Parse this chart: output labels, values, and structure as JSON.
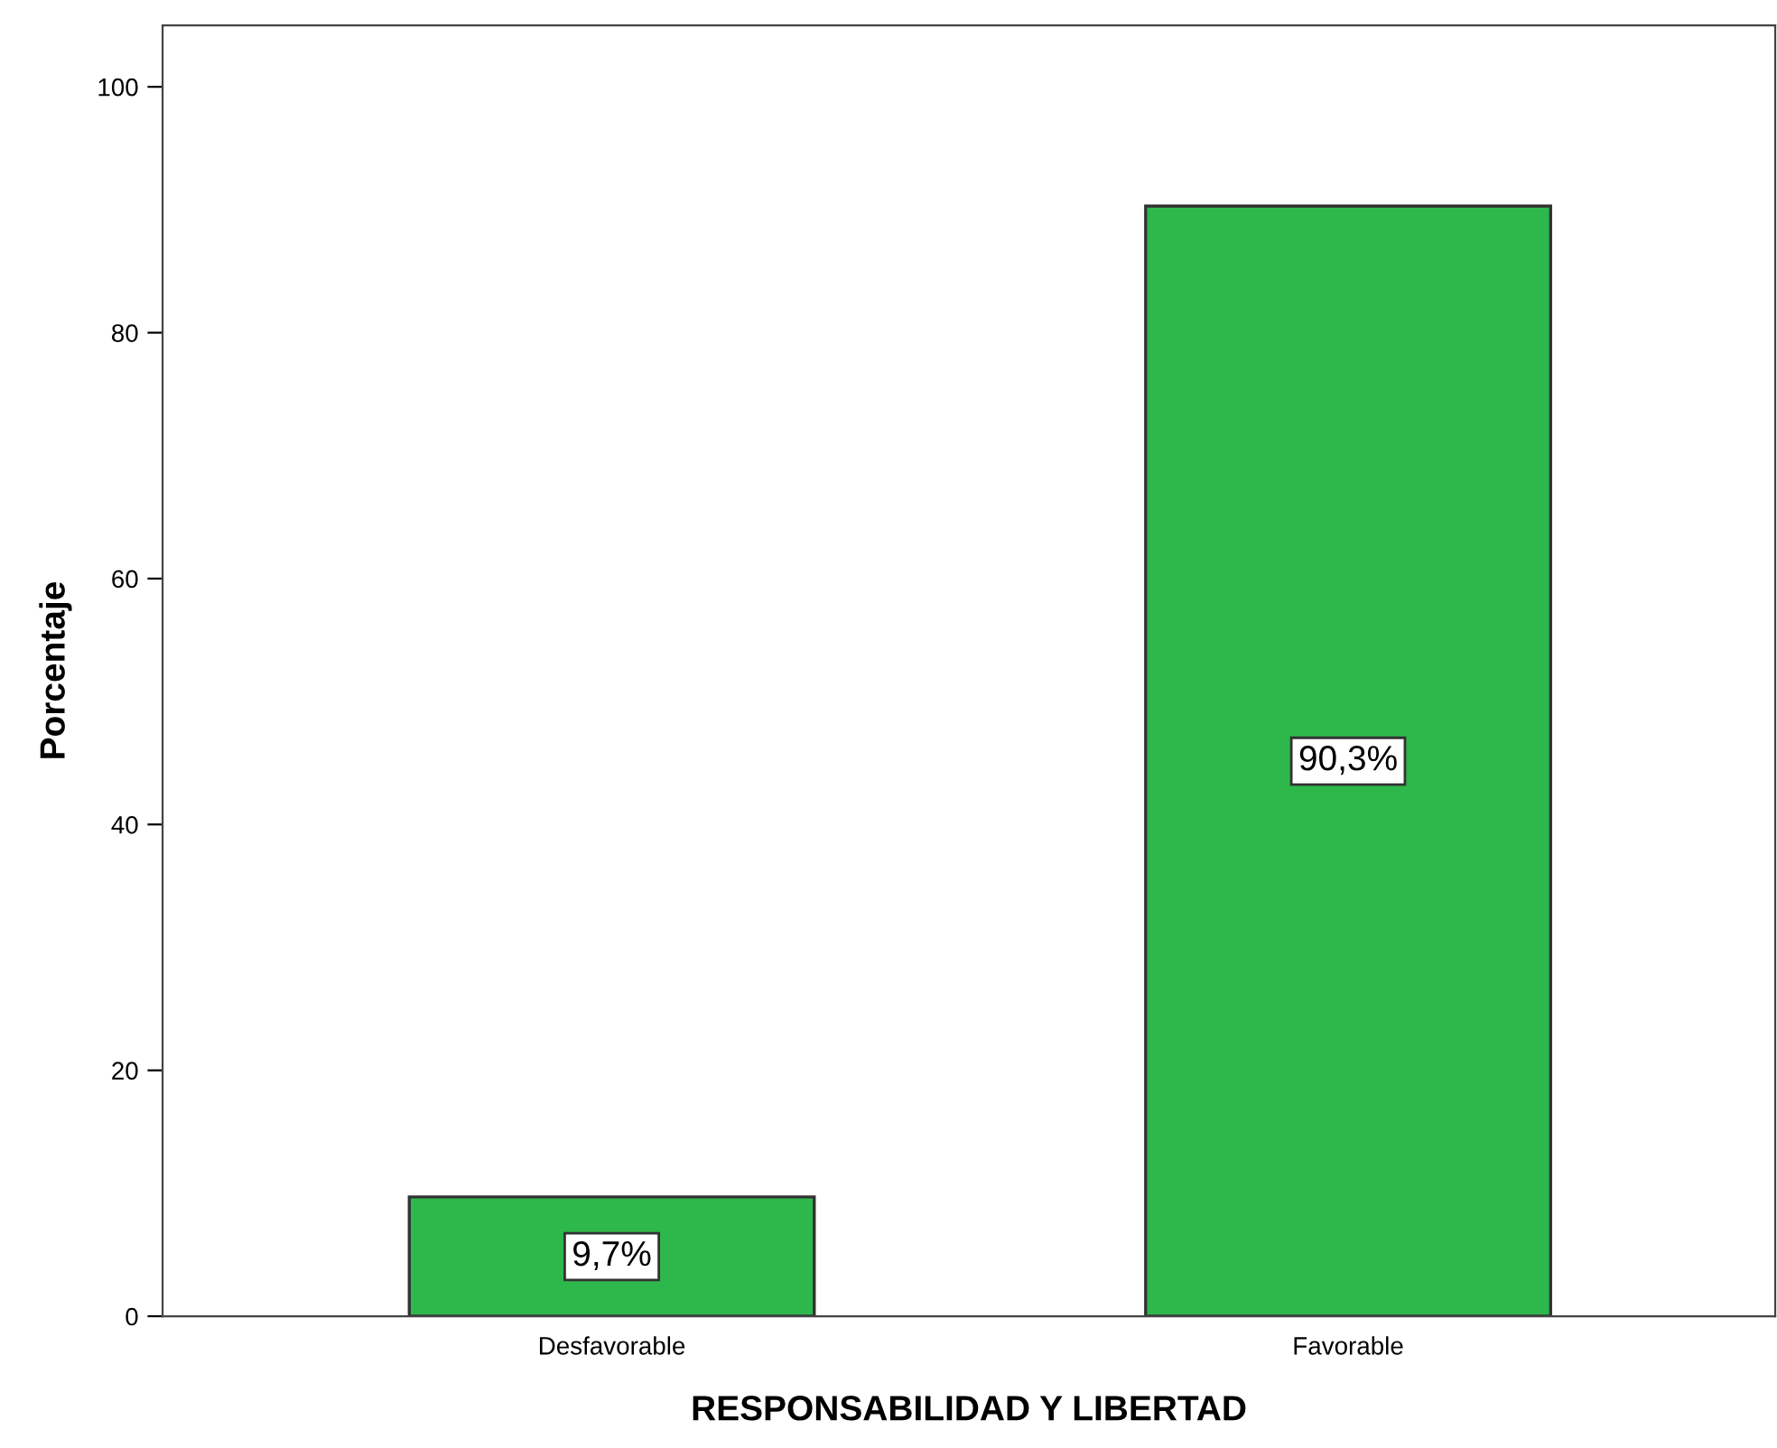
{
  "chart_data": {
    "type": "bar",
    "xlabel": "RESPONSABILIDAD Y LIBERTAD",
    "ylabel": "Porcentaje",
    "categories": [
      "Desfavorable",
      "Favorable"
    ],
    "values": [
      9.7,
      90.3
    ],
    "value_labels": [
      "9,7%",
      "90,3%"
    ],
    "color": "#2eb84b",
    "ylim": [
      0,
      105
    ],
    "yticks": [
      0,
      20,
      40,
      60,
      80,
      100
    ],
    "grid": false
  }
}
